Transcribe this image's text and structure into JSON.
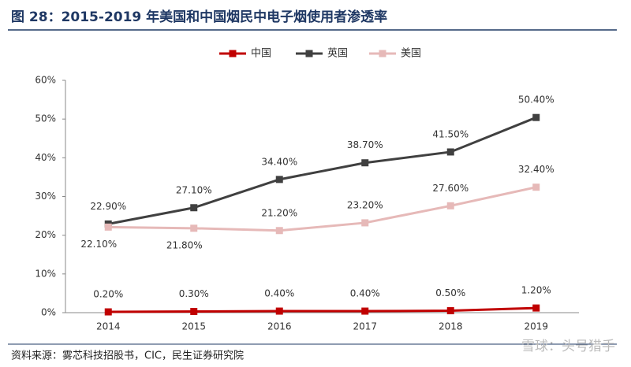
{
  "chart_data": {
    "type": "line",
    "title": "图 28：2015-2019 年美国和中国烟民中电子烟使用者渗透率",
    "categories": [
      "2014",
      "2015",
      "2016",
      "2017",
      "2018",
      "2019"
    ],
    "series": [
      {
        "name": "中国",
        "color": "#c00000",
        "values": [
          0.2,
          0.3,
          0.4,
          0.4,
          0.5,
          1.2
        ],
        "value_labels": [
          "0.20%",
          "0.30%",
          "0.40%",
          "0.40%",
          "0.50%",
          "1.20%"
        ]
      },
      {
        "name": "英国",
        "color": "#404040",
        "values": [
          22.9,
          27.1,
          34.4,
          38.7,
          41.5,
          50.4
        ],
        "value_labels": [
          "22.90%",
          "27.10%",
          "34.40%",
          "38.70%",
          "41.50%",
          "50.40%"
        ]
      },
      {
        "name": "美国",
        "color": "#e6b9b8",
        "values": [
          22.1,
          21.8,
          21.2,
          23.2,
          27.6,
          32.4
        ],
        "value_labels": [
          "22.10%",
          "21.80%",
          "21.20%",
          "23.20%",
          "27.60%",
          "32.40%"
        ]
      }
    ],
    "ylim": [
      0,
      60
    ],
    "yticks": [
      {
        "value": 0,
        "label": "0%"
      },
      {
        "value": 10,
        "label": "10%"
      },
      {
        "value": 20,
        "label": "20%"
      },
      {
        "value": 30,
        "label": "30%"
      },
      {
        "value": 40,
        "label": "40%"
      },
      {
        "value": 50,
        "label": "50%"
      },
      {
        "value": 60,
        "label": "60%"
      }
    ],
    "legend": "top",
    "source": "资料来源：雾芯科技招股书，CIC，民生证券研究院",
    "watermark": "雪球：头号猎手"
  }
}
